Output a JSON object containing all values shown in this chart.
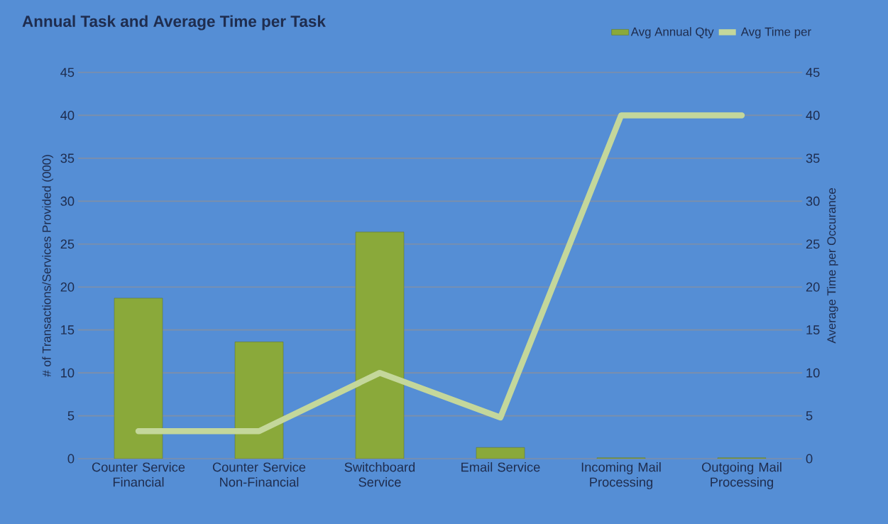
{
  "chart_data": {
    "type": "bar",
    "title": "Annual Task and Average Time per Task",
    "categories": [
      "Counter Service Financial",
      "Counter Service Non-Financial",
      "Switchboard Service",
      "Email Service",
      "Incoming Mail Processing",
      "Outgoing Mail Processing"
    ],
    "ylabel": "# of Transactions/Services Provided (000)",
    "y2label": "Average Time per Occurance",
    "ylim": [
      0,
      45
    ],
    "yticks": [
      0,
      5,
      10,
      15,
      20,
      25,
      30,
      35,
      40,
      45
    ],
    "y2lim": [
      0,
      45
    ],
    "y2ticks": [
      0,
      5,
      10,
      15,
      20,
      25,
      30,
      35,
      40,
      45
    ],
    "grid": "y",
    "legend": "top right",
    "series": [
      {
        "name": "Avg Annual Qty",
        "color": "#8aa93a",
        "values": [
          18.7,
          13.6,
          26.4,
          1.3,
          0.1,
          0.1
        ]
      },
      {
        "name": "Avg Time per",
        "type": "line",
        "axis": "y2",
        "color": "#c4d79b",
        "values": [
          3.2,
          3.2,
          10,
          4.8,
          40,
          40
        ]
      }
    ]
  }
}
